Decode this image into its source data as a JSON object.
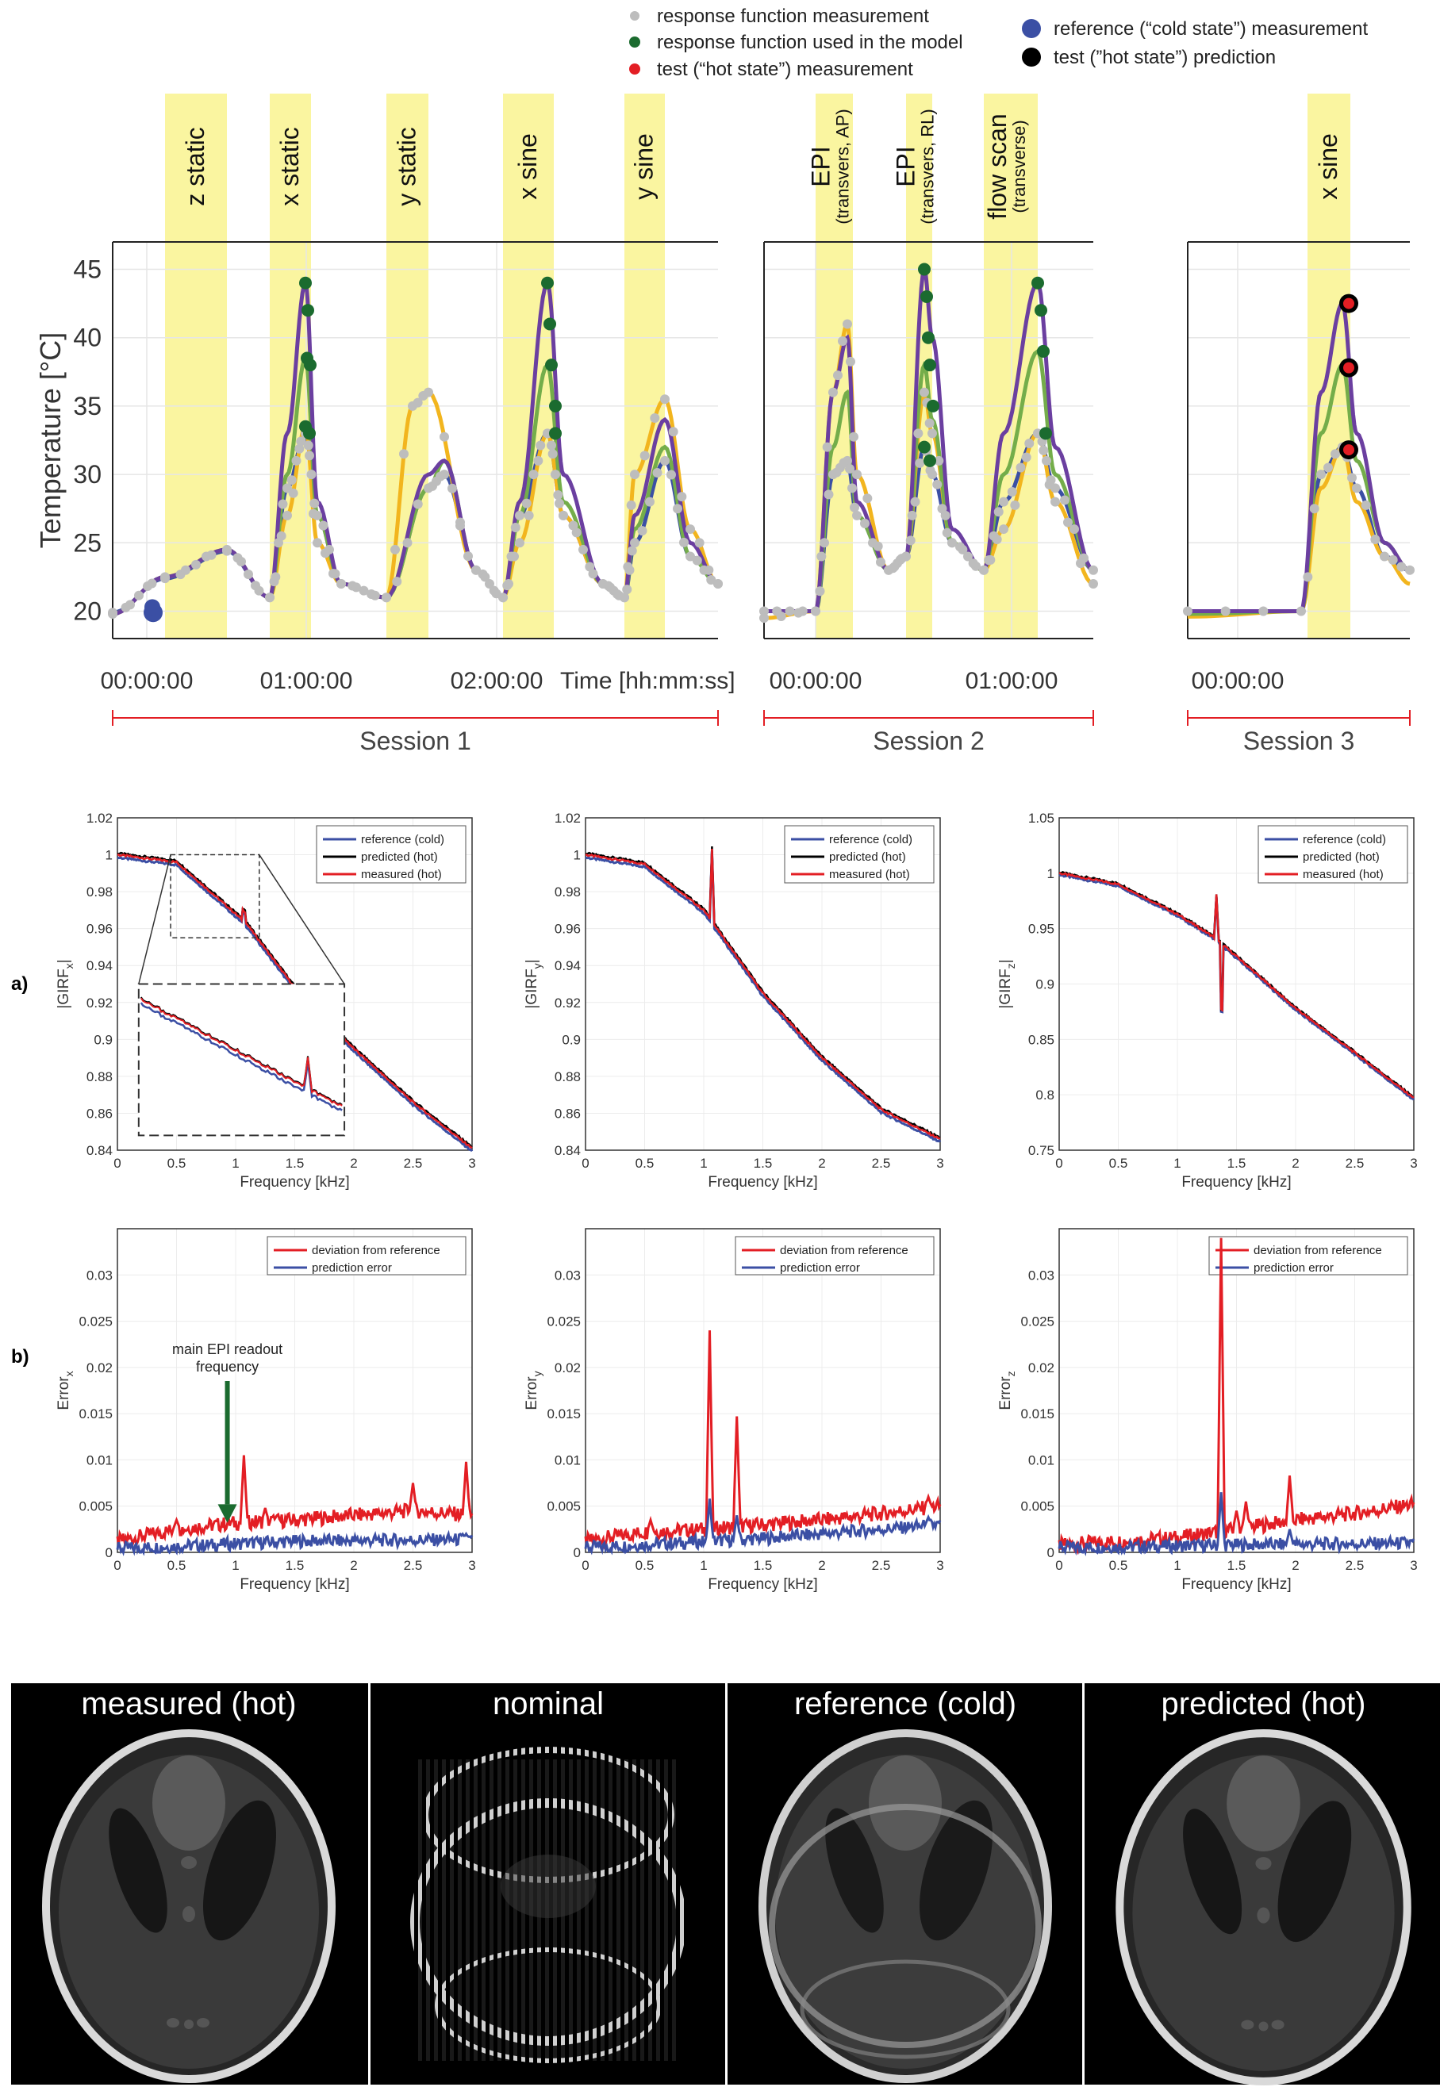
{
  "legend": {
    "items": [
      {
        "label": "response function measurement",
        "color": "#bdbdbd"
      },
      {
        "label": "response function used in the model",
        "color": "#1b6b2f"
      },
      {
        "label": "test (“hot state”) measurement",
        "color": "#e31e24"
      },
      {
        "label": "reference (“cold state”) measurement",
        "color": "#3b4fa4"
      },
      {
        "label": "test (”hot state”) prediction",
        "color": "#000000"
      }
    ]
  },
  "temperature": {
    "ylabel": "Temperature [°C]",
    "yticks": [
      20,
      25,
      30,
      35,
      40,
      45
    ],
    "ylim": [
      18,
      47
    ],
    "xunit": "Time [hh:mm:ss]",
    "sessions": [
      {
        "name": "Session 1",
        "xticks": [
          "00:00:00",
          "01:00:00",
          "02:00:00"
        ],
        "bands": [
          {
            "label": "z static"
          },
          {
            "label": "x static"
          },
          {
            "label": "y static"
          },
          {
            "label": "x sine"
          },
          {
            "label": "y sine"
          }
        ]
      },
      {
        "name": "Session 2",
        "xticks": [
          "00:00:00",
          "01:00:00"
        ],
        "bands": [
          {
            "label": "EPI",
            "sub": "(transvers, AP)"
          },
          {
            "label": "EPI",
            "sub": "(transvers, RL)"
          },
          {
            "label": "flow scan",
            "sub": "(transverse)"
          }
        ]
      },
      {
        "name": "Session 3",
        "xticks": [
          "00:00:00"
        ],
        "bands": [
          {
            "label": "x sine"
          }
        ]
      }
    ],
    "sensor_colors": [
      "#6b3fa0",
      "#74ad4a",
      "#f2b51e",
      "#3b4fa4"
    ],
    "band_color": "#faf5a0"
  },
  "panel_labels": {
    "a": "a)",
    "b": "b)"
  },
  "chart_data": [
    {
      "type": "line",
      "id": "girf-x",
      "ylabel_base": "|GIRF",
      "ylabel_sub": "x",
      "ylabel_end": "|",
      "xlabel": "Frequency [kHz]",
      "xlim": [
        0,
        3
      ],
      "ylim": [
        0.84,
        1.02
      ],
      "xticks": [
        0,
        0.5,
        1,
        1.5,
        2,
        2.5,
        3
      ],
      "yticks": [
        0.84,
        0.86,
        0.88,
        0.9,
        0.92,
        0.94,
        0.96,
        0.98,
        1,
        1.02
      ],
      "ytick_labels": [
        "0.84",
        "0.86",
        "0.88",
        "0.9",
        "0.92",
        "0.94",
        "0.96",
        "0.98",
        "1",
        "1.02"
      ],
      "series": [
        {
          "name": "reference (cold)",
          "color": "#3b4fa4"
        },
        {
          "name": "predicted (hot)",
          "color": "#000000"
        },
        {
          "name": "measured (hot)",
          "color": "#e31e24"
        }
      ],
      "curve": {
        "x": [
          0,
          0.5,
          1.0,
          1.1,
          1.5,
          2.0,
          2.5,
          3.0
        ],
        "y": [
          1.0,
          0.996,
          0.968,
          0.962,
          0.928,
          0.895,
          0.866,
          0.841
        ]
      }
    },
    {
      "type": "line",
      "id": "girf-y",
      "ylabel_base": "|GIRF",
      "ylabel_sub": "y",
      "ylabel_end": "|",
      "xlabel": "Frequency [kHz]",
      "xlim": [
        0,
        3
      ],
      "ylim": [
        0.84,
        1.02
      ],
      "xticks": [
        0,
        0.5,
        1,
        1.5,
        2,
        2.5,
        3
      ],
      "yticks": [
        0.84,
        0.86,
        0.88,
        0.9,
        0.92,
        0.94,
        0.96,
        0.98,
        1,
        1.02
      ],
      "ytick_labels": [
        "0.84",
        "0.86",
        "0.88",
        "0.9",
        "0.92",
        "0.94",
        "0.96",
        "0.98",
        "1",
        "1.02"
      ],
      "series": [
        {
          "name": "reference (cold)",
          "color": "#3b4fa4"
        },
        {
          "name": "predicted (hot)",
          "color": "#000000"
        },
        {
          "name": "measured (hot)",
          "color": "#e31e24"
        }
      ],
      "curve": {
        "x": [
          0,
          0.5,
          1.0,
          1.5,
          2.0,
          2.5,
          3.0
        ],
        "y": [
          1.0,
          0.995,
          0.97,
          0.925,
          0.89,
          0.862,
          0.846
        ]
      }
    },
    {
      "type": "line",
      "id": "girf-z",
      "ylabel_base": "|GIRF",
      "ylabel_sub": "z",
      "ylabel_end": "|",
      "xlabel": "Frequency [kHz]",
      "xlim": [
        0,
        3
      ],
      "ylim": [
        0.75,
        1.05
      ],
      "xticks": [
        0,
        0.5,
        1,
        1.5,
        2,
        2.5,
        3
      ],
      "yticks": [
        0.75,
        0.8,
        0.85,
        0.9,
        0.95,
        1,
        1.05
      ],
      "ytick_labels": [
        "0.75",
        "0.8",
        "0.85",
        "0.9",
        "0.95",
        "1",
        "1.05"
      ],
      "series": [
        {
          "name": "reference (cold)",
          "color": "#3b4fa4"
        },
        {
          "name": "predicted (hot)",
          "color": "#000000"
        },
        {
          "name": "measured (hot)",
          "color": "#e31e24"
        }
      ],
      "curve": {
        "x": [
          0,
          0.5,
          1.0,
          1.3,
          1.5,
          2.0,
          2.5,
          3.0
        ],
        "y": [
          1.0,
          0.99,
          0.963,
          0.943,
          0.925,
          0.878,
          0.838,
          0.797
        ]
      }
    },
    {
      "type": "line",
      "id": "err-x",
      "ylabel_base": "Error",
      "ylabel_sub": "x",
      "ylabel_end": "",
      "xlabel": "Frequency [kHz]",
      "xlim": [
        0,
        3
      ],
      "ylim": [
        0,
        0.035
      ],
      "xticks": [
        0,
        0.5,
        1,
        1.5,
        2,
        2.5,
        3
      ],
      "yticks": [
        0,
        0.005,
        0.01,
        0.015,
        0.02,
        0.025,
        0.03
      ],
      "ytick_labels": [
        "0",
        "0.005",
        "0.01",
        "0.015",
        "0.02",
        "0.025",
        "0.03"
      ],
      "series": [
        {
          "name": "deviation from reference",
          "color": "#e31e24"
        },
        {
          "name": "prediction error",
          "color": "#3b4fa4"
        }
      ],
      "annotation": {
        "text_lines": [
          "main EPI readout",
          "frequency"
        ],
        "x": 0.93,
        "color": "#1b6b2f"
      },
      "red": {
        "base": [
          [
            0,
            0.0012
          ],
          [
            0.5,
            0.0025
          ],
          [
            1.0,
            0.0032
          ],
          [
            1.5,
            0.0035
          ],
          [
            2.0,
            0.004
          ],
          [
            2.5,
            0.0045
          ],
          [
            3.0,
            0.004
          ]
        ],
        "peaks": [
          [
            0.5,
            0.0035
          ],
          [
            1.07,
            0.0105
          ],
          [
            1.25,
            0.0048
          ],
          [
            1.35,
            0.004
          ],
          [
            2.5,
            0.0075
          ],
          [
            2.95,
            0.0098
          ]
        ]
      },
      "blue": {
        "base": [
          [
            0,
            0.0004
          ],
          [
            1.5,
            0.0012
          ],
          [
            3.0,
            0.0014
          ]
        ],
        "peaks": [
          [
            1.07,
            0.0012
          ],
          [
            2.95,
            0.002
          ]
        ]
      }
    },
    {
      "type": "line",
      "id": "err-y",
      "ylabel_base": "Error",
      "ylabel_sub": "y",
      "ylabel_end": "",
      "xlabel": "Frequency [kHz]",
      "xlim": [
        0,
        3
      ],
      "ylim": [
        0,
        0.035
      ],
      "xticks": [
        0,
        0.5,
        1,
        1.5,
        2,
        2.5,
        3
      ],
      "yticks": [
        0,
        0.005,
        0.01,
        0.015,
        0.02,
        0.025,
        0.03
      ],
      "ytick_labels": [
        "0",
        "0.005",
        "0.01",
        "0.015",
        "0.02",
        "0.025",
        "0.03"
      ],
      "series": [
        {
          "name": "deviation from reference",
          "color": "#e31e24"
        },
        {
          "name": "prediction error",
          "color": "#3b4fa4"
        }
      ],
      "red": {
        "base": [
          [
            0,
            0.0012
          ],
          [
            0.5,
            0.0022
          ],
          [
            1.0,
            0.0025
          ],
          [
            1.5,
            0.003
          ],
          [
            2.0,
            0.0035
          ],
          [
            2.5,
            0.0042
          ],
          [
            3.0,
            0.005
          ]
        ],
        "peaks": [
          [
            0.55,
            0.0035
          ],
          [
            1.05,
            0.024
          ],
          [
            1.28,
            0.0147
          ],
          [
            2.9,
            0.006
          ]
        ]
      },
      "blue": {
        "base": [
          [
            0,
            0.0005
          ],
          [
            1.5,
            0.0015
          ],
          [
            3.0,
            0.003
          ]
        ],
        "peaks": [
          [
            1.05,
            0.0058
          ],
          [
            1.28,
            0.004
          ],
          [
            2.9,
            0.0038
          ]
        ]
      }
    },
    {
      "type": "line",
      "id": "err-z",
      "ylabel_base": "Error",
      "ylabel_sub": "z",
      "ylabel_end": "",
      "xlabel": "Frequency [kHz]",
      "xlim": [
        0,
        3
      ],
      "ylim": [
        0,
        0.035
      ],
      "xticks": [
        0,
        0.5,
        1,
        1.5,
        2,
        2.5,
        3
      ],
      "yticks": [
        0,
        0.005,
        0.01,
        0.015,
        0.02,
        0.025,
        0.03
      ],
      "ytick_labels": [
        "0",
        "0.005",
        "0.01",
        "0.015",
        "0.02",
        "0.025",
        "0.03"
      ],
      "series": [
        {
          "name": "deviation from reference",
          "color": "#e31e24"
        },
        {
          "name": "prediction error",
          "color": "#3b4fa4"
        }
      ],
      "red": {
        "base": [
          [
            0,
            0.0008
          ],
          [
            0.5,
            0.0012
          ],
          [
            1.0,
            0.0016
          ],
          [
            1.5,
            0.0025
          ],
          [
            2.0,
            0.0035
          ],
          [
            2.5,
            0.0042
          ],
          [
            3.0,
            0.0052
          ]
        ],
        "peaks": [
          [
            1.37,
            0.034
          ],
          [
            1.5,
            0.0045
          ],
          [
            1.58,
            0.0055
          ],
          [
            1.95,
            0.0083
          ]
        ]
      },
      "blue": {
        "base": [
          [
            0,
            0.0005
          ],
          [
            1.5,
            0.0008
          ],
          [
            3.0,
            0.001
          ]
        ],
        "peaks": [
          [
            1.37,
            0.0065
          ],
          [
            1.95,
            0.0025
          ]
        ]
      }
    }
  ],
  "phantoms": {
    "titles": [
      "measured (hot)",
      "nominal",
      "reference (cold)",
      "predicted (hot)"
    ]
  }
}
